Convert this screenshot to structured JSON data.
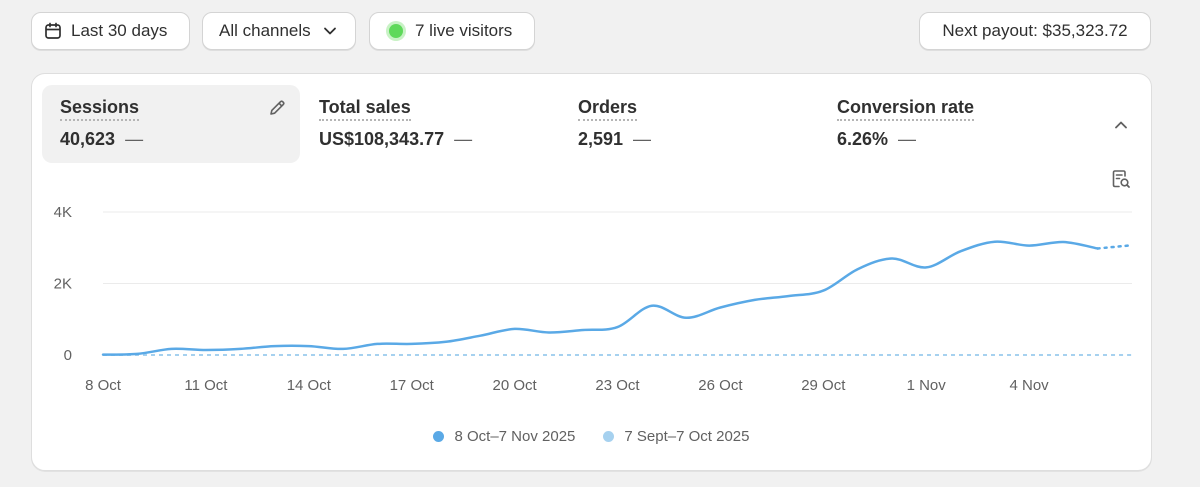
{
  "toolbar": {
    "date_range": "Last 30 days",
    "channels": "All channels",
    "live_visitors": "7 live visitors",
    "payout": "Next payout: $35,323.72"
  },
  "metrics": [
    {
      "label": "Sessions",
      "value": "40,623",
      "change": "—",
      "active": true
    },
    {
      "label": "Total sales",
      "value": "US$108,343.77",
      "change": "—",
      "active": false
    },
    {
      "label": "Orders",
      "value": "2,591",
      "change": "—",
      "active": false
    },
    {
      "label": "Conversion rate",
      "value": "6.26%",
      "change": "—",
      "active": false
    }
  ],
  "colors": {
    "current_series": "#5aa9e6",
    "previous_series": "#a6d1ef",
    "live_indicator": "#5ed95a"
  },
  "icons": {
    "date": "calendar-icon",
    "channels": "chevron-down-icon",
    "edit": "pencil-icon",
    "collapse": "chevron-up-icon",
    "report": "report-search-icon"
  },
  "chart_data": {
    "type": "line",
    "x": [
      "8 Oct",
      "9 Oct",
      "10 Oct",
      "11 Oct",
      "12 Oct",
      "13 Oct",
      "14 Oct",
      "15 Oct",
      "16 Oct",
      "17 Oct",
      "18 Oct",
      "19 Oct",
      "20 Oct",
      "21 Oct",
      "22 Oct",
      "23 Oct",
      "24 Oct",
      "25 Oct",
      "26 Oct",
      "27 Oct",
      "28 Oct",
      "29 Oct",
      "30 Oct",
      "31 Oct",
      "1 Nov",
      "2 Nov",
      "3 Nov",
      "4 Nov",
      "5 Nov",
      "6 Nov",
      "7 Nov"
    ],
    "xticks": [
      "8 Oct",
      "11 Oct",
      "14 Oct",
      "17 Oct",
      "20 Oct",
      "23 Oct",
      "26 Oct",
      "29 Oct",
      "1 Nov",
      "4 Nov"
    ],
    "yticks": [
      "0",
      "2K",
      "4K"
    ],
    "ylim": [
      0,
      4000
    ],
    "series": [
      {
        "name": "8 Oct–7 Nov 2025",
        "values": [
          10,
          30,
          170,
          140,
          170,
          250,
          250,
          170,
          310,
          310,
          370,
          540,
          730,
          630,
          700,
          780,
          1380,
          1040,
          1330,
          1540,
          1650,
          1800,
          2400,
          2700,
          2450,
          2900,
          3170,
          3060,
          3160,
          2980,
          3070
        ],
        "partial_from_index": 29
      },
      {
        "name": "7 Sept–7 Oct 2025",
        "values": [
          0,
          0,
          0,
          0,
          0,
          0,
          0,
          0,
          0,
          0,
          0,
          0,
          0,
          0,
          0,
          0,
          0,
          0,
          0,
          0,
          0,
          0,
          0,
          0,
          0,
          0,
          0,
          0,
          0,
          0,
          0
        ]
      }
    ],
    "grid": true,
    "legend_position": "bottom-center"
  }
}
